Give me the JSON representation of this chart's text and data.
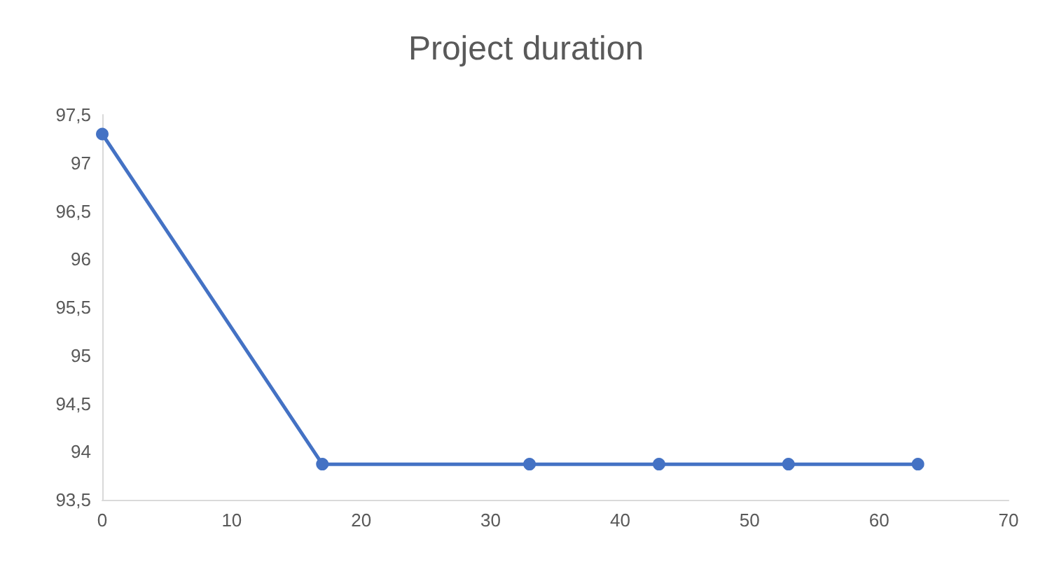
{
  "chart_data": {
    "type": "line",
    "title": "Project duration",
    "x": [
      0,
      17,
      33,
      43,
      53,
      63
    ],
    "series": [
      {
        "color": "#4472c4",
        "values": [
          97.3,
          93.87,
          93.87,
          93.87,
          93.87,
          93.87
        ]
      }
    ],
    "xlim": [
      0,
      70
    ],
    "xticks": [
      0,
      10,
      20,
      30,
      40,
      50,
      60,
      70
    ],
    "ylim": [
      93.5,
      97.5
    ],
    "yticks": [
      {
        "value": 93.5,
        "label": "93,5"
      },
      94,
      {
        "value": 94.5,
        "label": "94,5"
      },
      95,
      {
        "value": 95.5,
        "label": "95,5"
      },
      96,
      {
        "value": 96.5,
        "label": "96,5"
      },
      97,
      {
        "value": 97.5,
        "label": "97,5"
      }
    ],
    "grid": false,
    "marker": "circle",
    "line_style": "solid"
  }
}
